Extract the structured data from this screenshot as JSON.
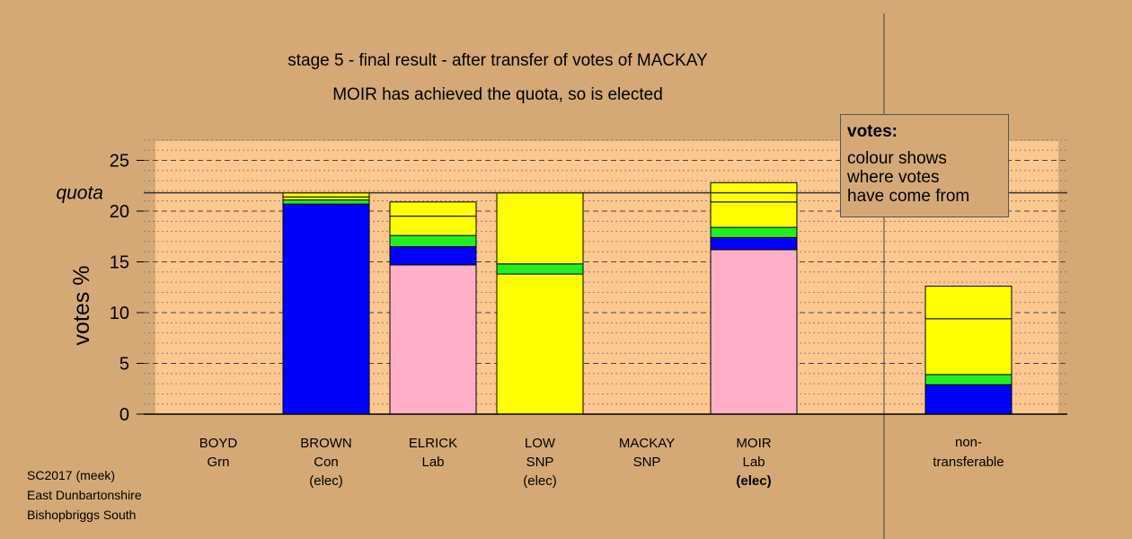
{
  "chart_data": {
    "type": "bar",
    "stacked": true,
    "title": "stage 5 - final result - after transfer of votes of MACKAY",
    "subtitle": "MOIR has achieved the quota, so is elected",
    "ylabel": "votes %",
    "ylim": [
      0,
      27
    ],
    "yticks": [
      0,
      5,
      10,
      15,
      20,
      25
    ],
    "quota": 21.8,
    "quota_label": "quota",
    "candidates": [
      {
        "name": "BOYD",
        "party": "Grn",
        "status": "",
        "status_bold": false,
        "segments": []
      },
      {
        "name": "BROWN",
        "party": "Con",
        "status": "(elec)",
        "status_bold": false,
        "segments": [
          {
            "source": "Con",
            "color": "#0000ff",
            "value": 20.7
          },
          {
            "source": "Grn",
            "color": "#22ee22",
            "value": 0.4
          },
          {
            "source": "SNP",
            "color": "#ffff00",
            "value": 0.3
          },
          {
            "source": "SNP",
            "color": "#ffff00",
            "value": 0.4
          }
        ]
      },
      {
        "name": "ELRICK",
        "party": "Lab",
        "status": "",
        "status_bold": false,
        "segments": [
          {
            "source": "Lab",
            "color": "#ffb0c8",
            "value": 14.7
          },
          {
            "source": "Con",
            "color": "#0000ff",
            "value": 1.8
          },
          {
            "source": "Grn",
            "color": "#22ee22",
            "value": 1.1
          },
          {
            "source": "SNP",
            "color": "#ffff00",
            "value": 1.9
          },
          {
            "source": "SNP",
            "color": "#ffff00",
            "value": 1.4
          }
        ]
      },
      {
        "name": "LOW",
        "party": "SNP",
        "status": "(elec)",
        "status_bold": false,
        "segments": [
          {
            "source": "SNP",
            "color": "#ffff00",
            "value": 13.8
          },
          {
            "source": "Grn",
            "color": "#22ee22",
            "value": 1.0
          },
          {
            "source": "SNP",
            "color": "#ffff00",
            "value": 7.0
          }
        ]
      },
      {
        "name": "MACKAY",
        "party": "SNP",
        "status": "",
        "status_bold": false,
        "segments": []
      },
      {
        "name": "MOIR",
        "party": "Lab",
        "status": "(elec)",
        "status_bold": true,
        "segments": [
          {
            "source": "Lab",
            "color": "#ffb0c8",
            "value": 16.2
          },
          {
            "source": "Con",
            "color": "#0000ff",
            "value": 1.2
          },
          {
            "source": "Grn",
            "color": "#22ee22",
            "value": 1.0
          },
          {
            "source": "SNP",
            "color": "#ffff00",
            "value": 2.5
          },
          {
            "source": "SNP",
            "color": "#ffff00",
            "value": 1.9
          }
        ]
      }
    ],
    "nontransferable": {
      "label_line1": "non-",
      "label_line2": "transferable",
      "segments": [
        {
          "source": "Con",
          "color": "#0000ff",
          "value": 2.9
        },
        {
          "source": "Grn",
          "color": "#22ee22",
          "value": 1.0
        },
        {
          "source": "SNP",
          "color": "#ffff00",
          "value": 5.5
        },
        {
          "source": "SNP",
          "color": "#ffff00",
          "value": 3.2
        }
      ]
    }
  },
  "legend": {
    "title": "votes:",
    "line1": "colour shows",
    "line2": "where votes",
    "line3": "have come from"
  },
  "footer": {
    "line1": "SC2017 (meek)",
    "line2": "East Dunbartonshire",
    "line3": "Bishopbriggs South"
  },
  "colors": {
    "background": "#d4a976",
    "plot_background": "#fcc890",
    "Con": "#0000ff",
    "Lab": "#ffb0c8",
    "SNP": "#ffff00",
    "Grn": "#22ee22"
  }
}
